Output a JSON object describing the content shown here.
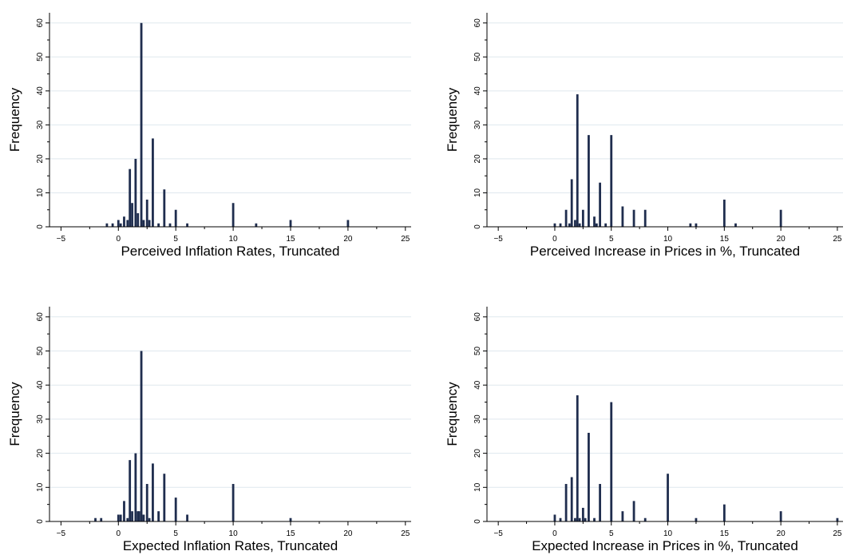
{
  "colors": {
    "bar": "#1f2d4e",
    "grid": "#dfe8ee",
    "axis": "#000000"
  },
  "chart_data": [
    {
      "type": "bar",
      "xlabel": "Perceived Inflation Rates, Truncated",
      "ylabel": "Frequency",
      "xlim": [
        -6,
        25.5
      ],
      "ylim": [
        0,
        63
      ],
      "xticks": [
        -5,
        0,
        5,
        10,
        15,
        20,
        25
      ],
      "yticks": [
        0,
        10,
        20,
        30,
        40,
        50,
        60
      ],
      "grid": true,
      "x": [
        -1,
        -0.5,
        0,
        0.2,
        0.5,
        0.8,
        1,
        1.2,
        1.5,
        1.7,
        2,
        2.2,
        2.5,
        2.7,
        3,
        3.5,
        4,
        4.5,
        5,
        6,
        10,
        12,
        15,
        20
      ],
      "values": [
        1,
        1,
        2,
        1,
        3,
        2,
        17,
        7,
        20,
        4,
        60,
        2,
        8,
        2,
        26,
        1,
        11,
        1,
        5,
        1,
        7,
        1,
        2,
        2
      ]
    },
    {
      "type": "bar",
      "xlabel": "Perceived Increase in Prices in %, Truncated",
      "ylabel": "Frequency",
      "xlim": [
        -6,
        25.5
      ],
      "ylim": [
        0,
        63
      ],
      "xticks": [
        -5,
        0,
        5,
        10,
        15,
        20,
        25
      ],
      "yticks": [
        0,
        10,
        20,
        30,
        40,
        50,
        60
      ],
      "grid": true,
      "x": [
        0,
        0.5,
        1,
        1.3,
        1.5,
        1.8,
        2,
        2.2,
        2.5,
        3,
        3.5,
        3.7,
        4,
        4.5,
        5,
        6,
        7,
        8,
        12,
        12.5,
        15,
        16,
        20
      ],
      "values": [
        1,
        1,
        5,
        1,
        14,
        2,
        39,
        1,
        5,
        27,
        3,
        1,
        13,
        1,
        27,
        6,
        5,
        5,
        1,
        1,
        8,
        1,
        5
      ]
    },
    {
      "type": "bar",
      "xlabel": "Expected Inflation Rates, Truncated",
      "ylabel": "Frequency",
      "xlim": [
        -6,
        25.5
      ],
      "ylim": [
        0,
        63
      ],
      "xticks": [
        -5,
        0,
        5,
        10,
        15,
        20,
        25
      ],
      "yticks": [
        0,
        10,
        20,
        30,
        40,
        50,
        60
      ],
      "grid": true,
      "x": [
        -2,
        -1.5,
        0,
        0.2,
        0.5,
        0.8,
        1,
        1.2,
        1.5,
        1.7,
        1.8,
        2,
        2.2,
        2.5,
        2.7,
        3,
        3.5,
        4,
        5,
        6,
        10,
        15
      ],
      "values": [
        1,
        1,
        2,
        2,
        6,
        1,
        18,
        3,
        20,
        3,
        3,
        50,
        2,
        11,
        1,
        17,
        3,
        14,
        7,
        2,
        11,
        1
      ]
    },
    {
      "type": "bar",
      "xlabel": "Expected Increase in Prices in %, Truncated",
      "ylabel": "Frequency",
      "xlim": [
        -6,
        25.5
      ],
      "ylim": [
        0,
        63
      ],
      "xticks": [
        -5,
        0,
        5,
        10,
        15,
        20,
        25
      ],
      "yticks": [
        0,
        10,
        20,
        30,
        40,
        50,
        60
      ],
      "grid": true,
      "x": [
        0,
        0.5,
        1,
        1.5,
        1.8,
        2,
        2.2,
        2.5,
        2.7,
        3,
        3.5,
        4,
        5,
        6,
        7,
        8,
        10,
        12.5,
        15,
        20,
        25
      ],
      "values": [
        2,
        1,
        11,
        13,
        1,
        37,
        1,
        4,
        1,
        26,
        1,
        11,
        35,
        3,
        6,
        1,
        14,
        1,
        5,
        3,
        1
      ]
    }
  ]
}
